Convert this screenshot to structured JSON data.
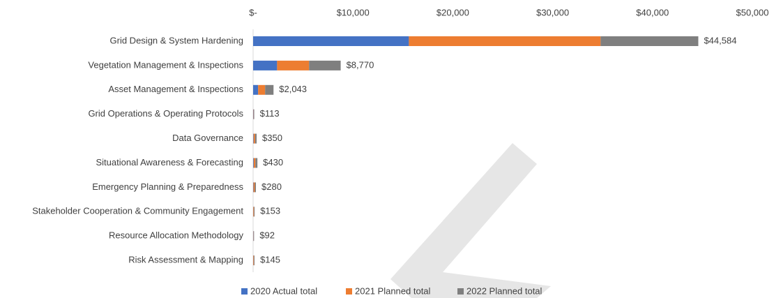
{
  "chart_data": {
    "type": "stacked-barh",
    "categories": [
      "Grid Design & System Hardening",
      "Vegetation Management & Inspections",
      "Asset Management & Inspections",
      "Grid Operations & Operating Protocols",
      "Data Governance",
      "Situational Awareness & Forecasting",
      "Emergency Planning & Preparedness",
      "Stakeholder Cooperation & Community Engagement",
      "Resource Allocation Methodology",
      "Risk Assessment & Mapping"
    ],
    "series": [
      {
        "name": "2020 Actual total",
        "color": "#4472c4",
        "values": [
          15600,
          2400,
          500,
          40,
          50,
          60,
          40,
          20,
          30,
          20
        ]
      },
      {
        "name": "2021 Planned total",
        "color": "#ed7d31",
        "values": [
          19200,
          3200,
          700,
          36,
          150,
          170,
          130,
          70,
          30,
          65
        ]
      },
      {
        "name": "2022 Planned total",
        "color": "#7f7f7f",
        "values": [
          9784,
          3170,
          843,
          37,
          150,
          200,
          110,
          63,
          32,
          60
        ]
      }
    ],
    "totals": [
      44584,
      8770,
      2043,
      113,
      350,
      430,
      280,
      153,
      92,
      145
    ],
    "total_labels": [
      "$44,584",
      "$8,770",
      "$2,043",
      "$113",
      "$350",
      "$430",
      "$280",
      "$153",
      "$92",
      "$145"
    ],
    "xlim": [
      0,
      50000
    ],
    "xticks": [
      {
        "value": 0,
        "label": "$-"
      },
      {
        "value": 10000,
        "label": "$10,000"
      },
      {
        "value": 20000,
        "label": "$20,000"
      },
      {
        "value": 30000,
        "label": "$30,000"
      },
      {
        "value": 40000,
        "label": "$40,000"
      },
      {
        "value": 50000,
        "label": "$50,000"
      }
    ],
    "legend": "bottom"
  }
}
